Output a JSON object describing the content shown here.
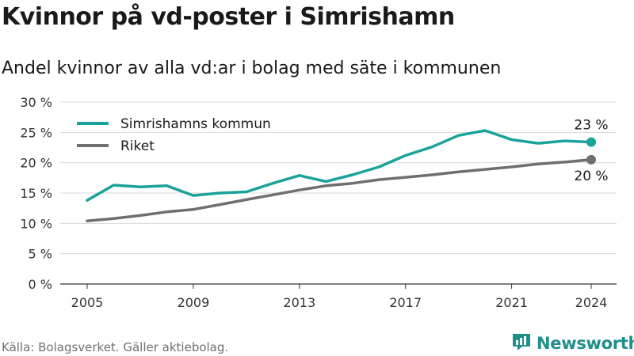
{
  "title": "Kvinnor på vd-poster i Simrishamn",
  "subtitle": "Andel kvinnor av alla vd:ar i bolag med säte i kommunen",
  "source": "Källa: Bolagsverket. Gäller aktiebolag.",
  "brand": {
    "name": "Newsworthy",
    "icon": "newsworthy-logo-icon"
  },
  "colors": {
    "simrishamn": "#1aa39a",
    "riket": "#6e6e73",
    "grid": "#d9d9d9",
    "axis": "#333333"
  },
  "chart_data": {
    "type": "line",
    "title": "Kvinnor på vd-poster i Simrishamn",
    "subtitle": "Andel kvinnor av alla vd:ar i bolag med säte i kommunen",
    "x": [
      2005,
      2006,
      2007,
      2008,
      2009,
      2010,
      2011,
      2012,
      2013,
      2014,
      2015,
      2016,
      2017,
      2018,
      2019,
      2020,
      2021,
      2022,
      2023,
      2024
    ],
    "series": [
      {
        "name": "Simrishamns kommun",
        "values": [
          13.8,
          16.3,
          16.0,
          16.2,
          14.6,
          15.0,
          15.2,
          16.6,
          17.9,
          16.9,
          18.0,
          19.3,
          21.2,
          22.6,
          24.5,
          25.3,
          23.8,
          23.2,
          23.6,
          23.4
        ],
        "end_label": "23 %"
      },
      {
        "name": "Riket",
        "values": [
          10.4,
          10.8,
          11.3,
          11.9,
          12.3,
          13.1,
          13.9,
          14.7,
          15.5,
          16.2,
          16.6,
          17.2,
          17.6,
          18.0,
          18.5,
          18.9,
          19.3,
          19.8,
          20.1,
          20.5
        ],
        "end_label": "20 %"
      }
    ],
    "ylim": [
      0,
      30
    ],
    "yticks": [
      0,
      5,
      10,
      15,
      20,
      25,
      30
    ],
    "ytick_labels": [
      "0 %",
      "5 %",
      "10 %",
      "15 %",
      "20 %",
      "25 %",
      "30 %"
    ],
    "xticks": [
      2005,
      2009,
      2013,
      2017,
      2021,
      2024
    ],
    "xtick_labels": [
      "2005",
      "2009",
      "2013",
      "2017",
      "2021",
      "2024"
    ],
    "xlabel": "",
    "ylabel": "",
    "grid": true,
    "legend": "top-left"
  }
}
